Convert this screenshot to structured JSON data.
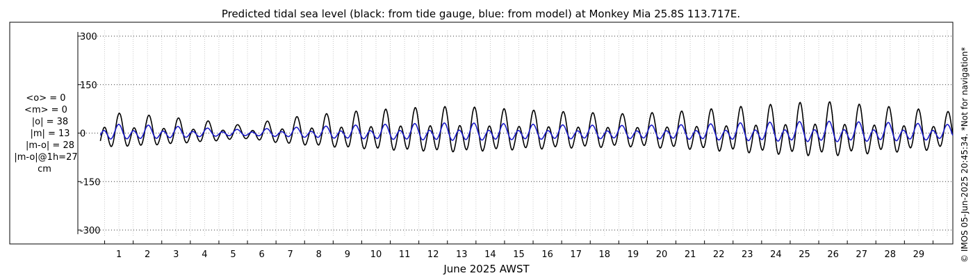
{
  "chart_data": {
    "type": "line",
    "title": "Predicted tidal sea level (black: from tide gauge, blue: from model) at Monkey Mia 25.8S 113.717E.",
    "xlabel": "June 2025 AWST",
    "ylabel": "",
    "ylim": [
      -320,
      320
    ],
    "y_ticks": [
      300,
      150,
      0,
      -150,
      -300
    ],
    "y_tick_labels": [
      "300",
      "150",
      "0",
      "-150",
      "-300"
    ],
    "x_range_days": [
      0.5,
      30.4
    ],
    "x_ticks": [
      1,
      2,
      3,
      4,
      5,
      6,
      7,
      8,
      9,
      10,
      11,
      12,
      13,
      14,
      15,
      16,
      17,
      18,
      19,
      20,
      21,
      22,
      23,
      24,
      25,
      26,
      27,
      28,
      29
    ],
    "x_tick_labels": [
      "1",
      "2",
      "3",
      "4",
      "5",
      "6",
      "7",
      "8",
      "9",
      "10",
      "11",
      "12",
      "13",
      "14",
      "15",
      "16",
      "17",
      "18",
      "19",
      "20",
      "21",
      "22",
      "23",
      "24",
      "25",
      "26",
      "27",
      "28",
      "29"
    ],
    "grid": true,
    "series": [
      {
        "name": "tide gauge",
        "color": "#000000",
        "daily_peak_cm": [
          [
            0.5,
            55
          ],
          [
            2.5,
            45
          ],
          [
            4.5,
            30
          ],
          [
            5.5,
            20
          ],
          [
            7.0,
            40
          ],
          [
            9.0,
            55
          ],
          [
            11.0,
            65
          ],
          [
            13.0,
            70
          ],
          [
            15.0,
            62
          ],
          [
            17.0,
            55
          ],
          [
            19.0,
            50
          ],
          [
            21.0,
            58
          ],
          [
            23.0,
            70
          ],
          [
            25.0,
            80
          ],
          [
            26.0,
            82
          ],
          [
            28.0,
            70
          ],
          [
            30.4,
            55
          ]
        ]
      },
      {
        "name": "model",
        "color": "#1a1ac8",
        "daily_peak_cm": [
          [
            0.5,
            24
          ],
          [
            2.5,
            20
          ],
          [
            4.5,
            12
          ],
          [
            5.5,
            9
          ],
          [
            7.0,
            14
          ],
          [
            9.0,
            20
          ],
          [
            11.0,
            24
          ],
          [
            13.0,
            27
          ],
          [
            15.0,
            24
          ],
          [
            17.0,
            21
          ],
          [
            19.0,
            20
          ],
          [
            21.0,
            22
          ],
          [
            23.0,
            27
          ],
          [
            25.0,
            30
          ],
          [
            26.0,
            31
          ],
          [
            28.0,
            28
          ],
          [
            30.4,
            22
          ]
        ]
      }
    ]
  },
  "stats": {
    "mean_obs": "<o> = 0",
    "mean_model": "<m> = 0",
    "abs_obs": "|o| = 38",
    "abs_model": "|m| = 13",
    "abs_diff": "|m-o| = 28",
    "abs_diff_lag": "|m-o|@1h=27",
    "units": "cm"
  },
  "copyright": "© IMOS 05-Jun-2025 20:45:34. *Not for navigation*"
}
